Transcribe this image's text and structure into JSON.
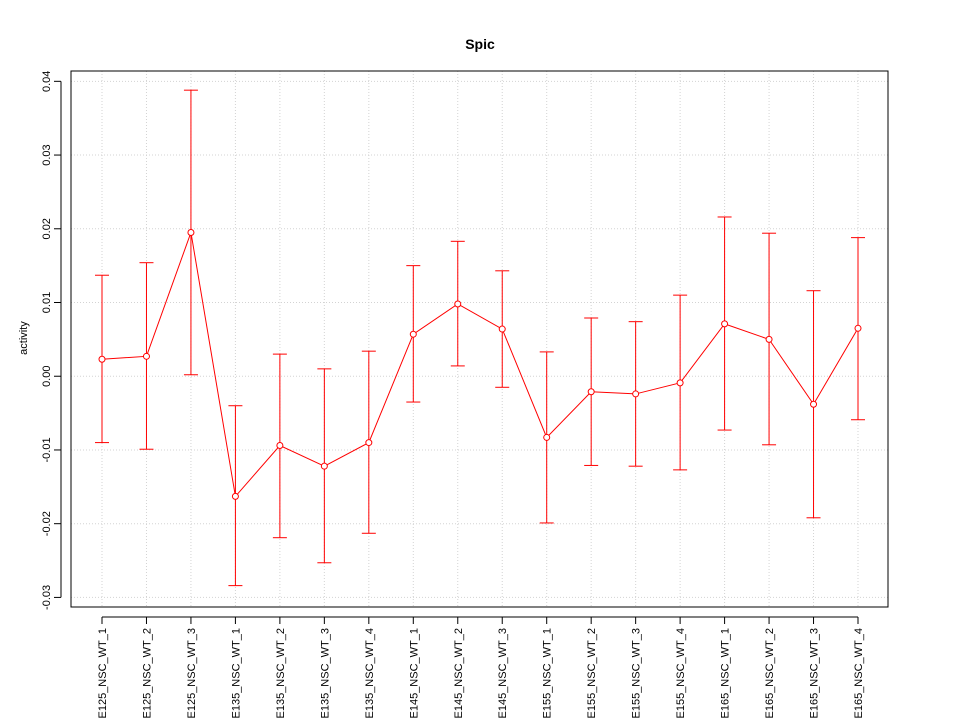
{
  "chart_data": {
    "type": "line",
    "title": "Spic",
    "xlabel": "",
    "ylabel": "activity",
    "categories": [
      "E125_NSC_WT_1",
      "E125_NSC_WT_2",
      "E125_NSC_WT_3",
      "E135_NSC_WT_1",
      "E135_NSC_WT_2",
      "E135_NSC_WT_3",
      "E135_NSC_WT_4",
      "E145_NSC_WT_1",
      "E145_NSC_WT_2",
      "E145_NSC_WT_3",
      "E155_NSC_WT_1",
      "E155_NSC_WT_2",
      "E155_NSC_WT_3",
      "E155_NSC_WT_4",
      "E165_NSC_WT_1",
      "E165_NSC_WT_2",
      "E165_NSC_WT_3",
      "E165_NSC_WT_4"
    ],
    "series": [
      {
        "values": [
          0.0023,
          0.0027,
          0.0195,
          -0.0163,
          -0.0094,
          -0.0122,
          -0.009,
          0.0057,
          0.0098,
          0.0064,
          -0.0083,
          -0.0021,
          -0.0024,
          -0.0009,
          0.0071,
          0.005,
          -0.0038,
          0.0065
        ],
        "upper": [
          0.0137,
          0.0154,
          0.0388,
          -0.004,
          0.003,
          0.001,
          0.0034,
          0.015,
          0.0183,
          0.0143,
          0.0033,
          0.0079,
          0.0074,
          0.011,
          0.0216,
          0.0194,
          0.0116,
          0.0188
        ],
        "lower": [
          -0.009,
          -0.0099,
          0.0002,
          -0.0284,
          -0.0219,
          -0.0253,
          -0.0213,
          -0.0035,
          0.0014,
          -0.0015,
          -0.0199,
          -0.0121,
          -0.0122,
          -0.0127,
          -0.0073,
          -0.0093,
          -0.0192,
          -0.0059
        ]
      }
    ],
    "yticks": [
      -0.03,
      -0.02,
      -0.01,
      0.0,
      0.01,
      0.02,
      0.03,
      0.04
    ],
    "ytick_labels": [
      "-0.03",
      "-0.02",
      "-0.01",
      "0.00",
      "0.01",
      "0.02",
      "0.03",
      "0.04"
    ],
    "ylim": [
      -0.0313,
      0.0414
    ],
    "grid": true,
    "colors": {
      "series": "#ff0000",
      "grid": "#d3d3d3",
      "axis": "#000000"
    }
  }
}
